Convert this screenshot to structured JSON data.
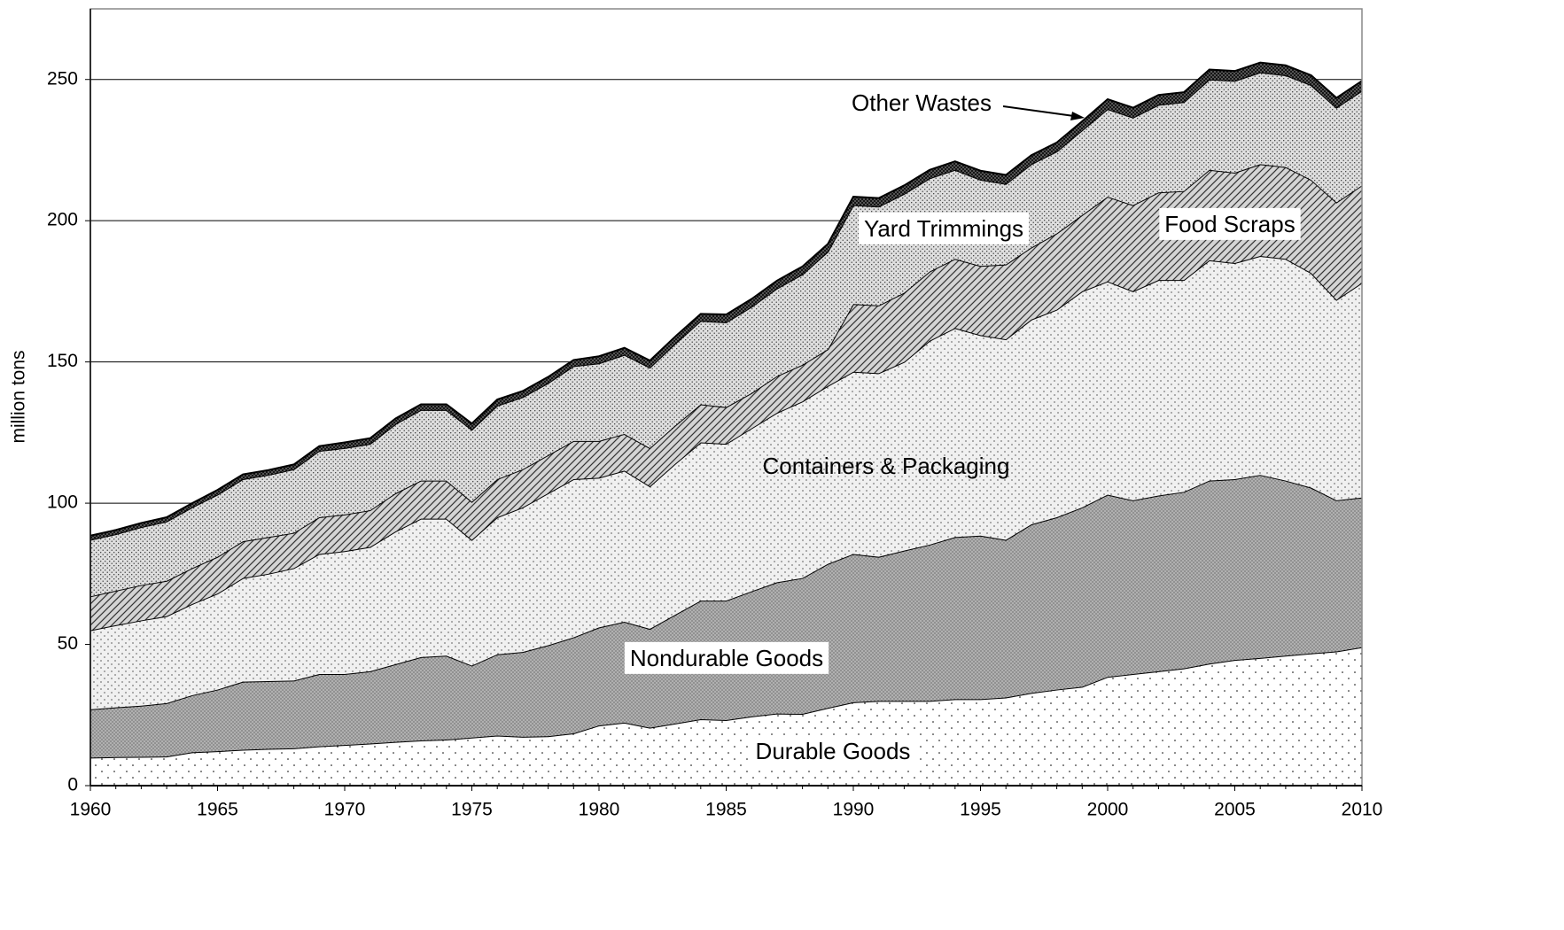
{
  "chart_data": {
    "type": "stacked_area",
    "y_label": "million tons",
    "x": [
      1960,
      1961,
      1962,
      1963,
      1964,
      1965,
      1966,
      1967,
      1968,
      1969,
      1970,
      1971,
      1972,
      1973,
      1974,
      1975,
      1976,
      1977,
      1978,
      1979,
      1980,
      1981,
      1982,
      1983,
      1984,
      1985,
      1986,
      1987,
      1988,
      1989,
      1990,
      1991,
      1992,
      1993,
      1994,
      1995,
      1996,
      1997,
      1998,
      1999,
      2000,
      2001,
      2002,
      2003,
      2004,
      2005,
      2006,
      2007,
      2008,
      2009,
      2010
    ],
    "xlim": [
      1960,
      2010
    ],
    "xticks": [
      1960,
      1965,
      1970,
      1975,
      1980,
      1985,
      1990,
      1995,
      2000,
      2005,
      2010
    ],
    "ylim": [
      0,
      275
    ],
    "yticks": [
      0,
      50,
      100,
      150,
      200,
      250
    ],
    "grid": true,
    "series": [
      {
        "name": "Durable Goods",
        "color": "#ffffff",
        "values": [
          9.9,
          10.1,
          10.2,
          10.3,
          11.8,
          12.2,
          12.7,
          13,
          13.2,
          13.9,
          14.4,
          14.9,
          15.5,
          16,
          16.3,
          17,
          17.7,
          17.3,
          17.5,
          18.5,
          21.3,
          22.3,
          20.5,
          22,
          23.5,
          23.2,
          24.5,
          25.5,
          25.4,
          27.5,
          29.5,
          30,
          30,
          30,
          30.6,
          30.6,
          31.2,
          32.8,
          34,
          35,
          38.5,
          39.5,
          40.5,
          41.5,
          43.2,
          44.5,
          45.2,
          46,
          46.8,
          47.5,
          49
        ]
      },
      {
        "name": "Nondurable Goods",
        "color": "#b0b0b0",
        "values": [
          17.1,
          17.6,
          18.1,
          18.9,
          20.2,
          21.8,
          24.1,
          24,
          24,
          25.6,
          25.1,
          25.6,
          27.5,
          29.5,
          29.7,
          25.5,
          28.8,
          30,
          32.2,
          34,
          34.7,
          35.7,
          35,
          38.5,
          42,
          42.3,
          44.3,
          46.5,
          48.1,
          51,
          52.5,
          51,
          53.2,
          55.3,
          57.4,
          57.9,
          55.8,
          59.7,
          61,
          63.5,
          64.5,
          61.5,
          62.2,
          62.5,
          64.8,
          64,
          64.8,
          62,
          58.7,
          53.5,
          53
        ]
      },
      {
        "name": "Containers & Packaging",
        "color": "#f0f0f0",
        "values": [
          28,
          29.1,
          30.2,
          30.8,
          32.3,
          34,
          36.7,
          38,
          39.8,
          42.5,
          43.5,
          44,
          47,
          49,
          48.5,
          44.5,
          48.5,
          51.2,
          53.8,
          56,
          53,
          53.5,
          50.5,
          53.5,
          56,
          55.5,
          57.7,
          60,
          62.5,
          63,
          64.5,
          65,
          66.8,
          72.2,
          74,
          71,
          71,
          72.5,
          73.5,
          76.5,
          75.5,
          74,
          76.3,
          75,
          78,
          76.5,
          77.5,
          78.5,
          76,
          71,
          76
        ]
      },
      {
        "name": "Food Scraps",
        "color": "#d4d4d4",
        "values": [
          12,
          12.2,
          12.5,
          12.5,
          12.7,
          13,
          13,
          13,
          12.5,
          13,
          13,
          13,
          13.5,
          13.5,
          13.5,
          13.5,
          13.5,
          13.5,
          13.5,
          13.5,
          13,
          13,
          13.5,
          13.5,
          13.5,
          13,
          12.5,
          13,
          13,
          13,
          24,
          24,
          24.5,
          24.5,
          24.5,
          24.5,
          26.5,
          25.5,
          27,
          27,
          30,
          30.5,
          31,
          31.5,
          32,
          32,
          32.5,
          32.5,
          33,
          34.5,
          34.5
        ]
      },
      {
        "name": "Yard Trimmings",
        "color": "#dedede",
        "values": [
          20,
          20,
          20.5,
          21,
          21.5,
          22,
          22,
          22,
          22.5,
          23.5,
          23.5,
          23.5,
          24.5,
          25,
          25,
          25.5,
          26,
          25.5,
          25.5,
          26.5,
          27.5,
          28,
          28.5,
          29,
          29.5,
          30,
          30.5,
          31,
          32,
          34.5,
          35,
          35,
          35,
          33,
          31.5,
          30.5,
          28.5,
          29.5,
          29,
          30,
          31,
          31,
          31,
          31.5,
          32,
          32.5,
          32.5,
          32.5,
          33.5,
          33.5,
          33.5
        ]
      },
      {
        "name": "Other Wastes",
        "color": "#555555",
        "values": [
          1.5,
          1.5,
          1.5,
          1.5,
          1.5,
          1.7,
          1.7,
          1.7,
          1.7,
          1.7,
          2,
          2,
          2,
          2,
          2,
          2.2,
          2.2,
          2.2,
          2.2,
          2.2,
          2.5,
          2.5,
          2.5,
          2.5,
          2.5,
          2.8,
          2.8,
          2.8,
          2.8,
          2.8,
          3,
          3,
          3,
          3,
          3,
          3.2,
          3.2,
          3.2,
          3.2,
          3.2,
          3.5,
          3.5,
          3.5,
          3.5,
          3.5,
          3.5,
          3.5,
          3.5,
          3.5,
          3.5,
          3.5
        ]
      }
    ]
  }
}
